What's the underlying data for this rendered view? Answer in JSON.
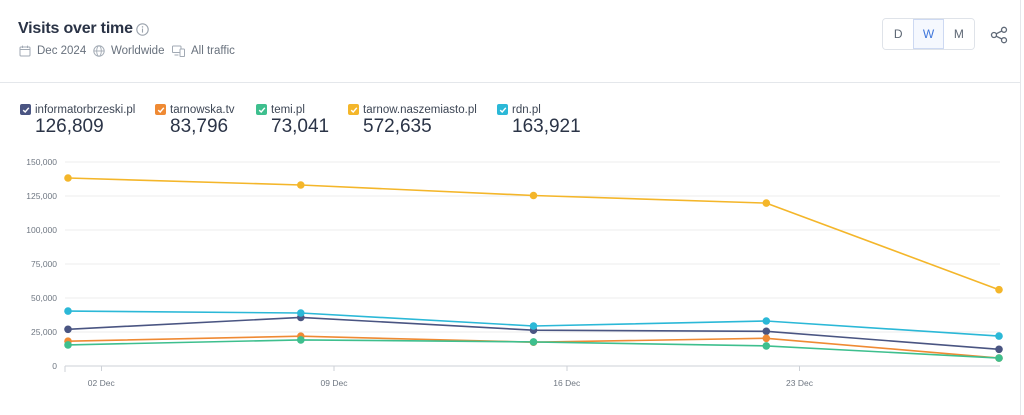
{
  "chart_data": {
    "type": "line",
    "title": "Visits over time",
    "x": [
      "2024-12-01",
      "2024-12-08",
      "2024-12-15",
      "2024-12-22",
      "2024-12-29"
    ],
    "xlim": [
      "2024-12-01",
      "2024-12-29"
    ],
    "xticks": [
      "2024-12-02",
      "2024-12-09",
      "2024-12-16",
      "2024-12-23"
    ],
    "xtick_labels": [
      "02 Dec",
      "09 Dec",
      "16 Dec",
      "23 Dec"
    ],
    "ylim": [
      0,
      150000
    ],
    "yticks": [
      0,
      25000,
      50000,
      75000,
      100000,
      125000,
      150000
    ],
    "ytick_labels": [
      "0",
      "25,000",
      "50,000",
      "75,000",
      "100,000",
      "125,000",
      "150,000"
    ],
    "grid": true,
    "legend_position": "top-left",
    "series": [
      {
        "name": "informatorbrzeski.pl",
        "total": "126,809",
        "color": "#4a5582",
        "values": [
          27000,
          35700,
          26300,
          25500,
          12300
        ]
      },
      {
        "name": "tarnowska.tv",
        "total": "83,796",
        "color": "#ef8a34",
        "values": [
          18200,
          21900,
          17500,
          20400,
          5800
        ]
      },
      {
        "name": "temi.pl",
        "total": "73,041",
        "color": "#3ebf8e",
        "values": [
          15500,
          19200,
          17700,
          14800,
          5800
        ]
      },
      {
        "name": "tarnow.naszemiasto.pl",
        "total": "572,635",
        "color": "#f4b62a",
        "values": [
          138200,
          133100,
          125400,
          119800,
          56100
        ]
      },
      {
        "name": "rdn.pl",
        "total": "163,921",
        "color": "#2bb8d7",
        "values": [
          40400,
          39000,
          29400,
          33100,
          22000
        ]
      }
    ]
  },
  "filters": [
    {
      "icon": "calendar-icon",
      "label": "Dec 2024"
    },
    {
      "icon": "globe-icon",
      "label": "Worldwide"
    },
    {
      "icon": "devices-icon",
      "label": "All traffic"
    }
  ],
  "granularity": {
    "options": [
      "D",
      "W",
      "M"
    ],
    "selected_index": 1
  },
  "colors": {
    "accent": "#3f76db"
  }
}
